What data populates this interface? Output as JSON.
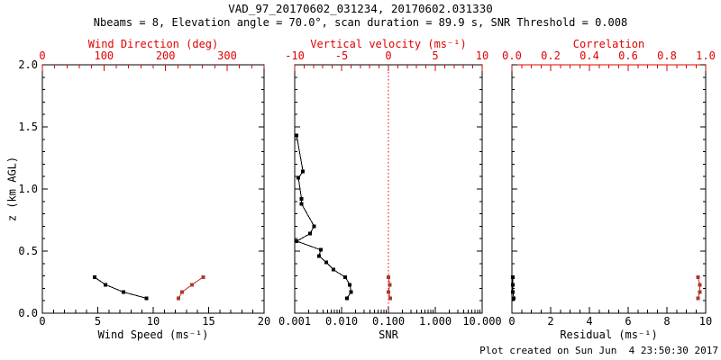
{
  "title": "VAD_97_20170602_031234, 20170602.031330",
  "subtitle": "Nbeams = 8, Elevation angle = 70.0°, scan duration = 89.9 s, SNR Threshold = 0.008",
  "footer": "Plot created on Sun Jun  4 23:50:30 2017",
  "colors": {
    "axis_red": "#e00000",
    "data_red": "#b1372a",
    "data_black": "#000000",
    "frame": "#000000",
    "background": "#ffffff"
  },
  "chart_data": [
    {
      "id": "wind",
      "type": "line",
      "xaxis_bottom": {
        "label": "Wind Speed (ms⁻¹)",
        "scale": "linear",
        "range": [
          0,
          20
        ],
        "tick_values": [
          0,
          5,
          10,
          15,
          20
        ],
        "ticks": [
          "0",
          "5",
          "10",
          "15",
          "20"
        ],
        "minor_step": 1,
        "red_line": false
      },
      "xaxis_top": {
        "label": "Wind Direction (deg)",
        "scale": "linear",
        "range": [
          0,
          360
        ],
        "tick_values": [
          0,
          100,
          200,
          300
        ],
        "ticks": [
          "0",
          "100",
          "200",
          "300"
        ],
        "minor_step": 20,
        "red_line": false
      },
      "yaxis": {
        "label": "z (km AGL)",
        "range": [
          0,
          2
        ],
        "tick_values": [
          0,
          0.5,
          1,
          1.5,
          2
        ],
        "ticks": [
          "0.0",
          "0.5",
          "1.0",
          "1.5",
          "2.0"
        ],
        "minor_step": 0.1
      },
      "series": [
        {
          "name": "wind_speed",
          "axis": "bottom",
          "color": "black",
          "marker": "square",
          "x": [
            4.7,
            5.7,
            7.3,
            9.4
          ],
          "z": [
            0.29,
            0.23,
            0.17,
            0.12
          ]
        },
        {
          "name": "wind_direction",
          "axis": "top",
          "color": "red",
          "marker": "square",
          "x": [
            261,
            243,
            227,
            221
          ],
          "z": [
            0.29,
            0.23,
            0.17,
            0.12
          ]
        }
      ]
    },
    {
      "id": "snr",
      "type": "line",
      "xaxis_bottom": {
        "label": "SNR",
        "scale": "log",
        "range": [
          0.001,
          10
        ],
        "tick_values": [
          0.001,
          0.01,
          0.1,
          1,
          10
        ],
        "ticks": [
          "0.001",
          "0.010",
          "0.100",
          "1.000",
          "10.000"
        ],
        "red_line": false
      },
      "xaxis_top": {
        "label": "Vertical velocity (ms⁻¹)",
        "scale": "linear",
        "range": [
          -10,
          10
        ],
        "tick_values": [
          -10,
          -5,
          0,
          5,
          10
        ],
        "ticks": [
          "-10",
          "-5",
          "0",
          "5",
          "10"
        ],
        "minor_step": 1,
        "red_line": false
      },
      "refline": {
        "axis": "top",
        "value": 0,
        "color": "red",
        "style": "dotted"
      },
      "series": [
        {
          "name": "snr_profile",
          "axis": "bottom",
          "color": "black",
          "marker": "square",
          "x": [
            0.0011,
            0.0015,
            0.0012,
            0.0014,
            0.0014,
            0.0026,
            0.0021,
            0.0011,
            0.0036,
            0.0033,
            0.0047,
            0.0067,
            0.012,
            0.015,
            0.016,
            0.013
          ],
          "z": [
            1.43,
            1.14,
            1.09,
            0.92,
            0.88,
            0.7,
            0.64,
            0.58,
            0.51,
            0.46,
            0.41,
            0.35,
            0.29,
            0.23,
            0.17,
            0.12
          ]
        },
        {
          "name": "vertical_velocity",
          "axis": "top",
          "color": "red",
          "marker": "square",
          "x": [
            0.0,
            0.15,
            0.0,
            0.2
          ],
          "z": [
            0.29,
            0.23,
            0.17,
            0.12
          ]
        }
      ]
    },
    {
      "id": "residual",
      "type": "line",
      "xaxis_bottom": {
        "label": "Residual (ms⁻¹)",
        "scale": "linear",
        "range": [
          0,
          10
        ],
        "tick_values": [
          0,
          2,
          4,
          6,
          8,
          10
        ],
        "ticks": [
          "0",
          "2",
          "4",
          "6",
          "8",
          "10"
        ],
        "minor_step": 0.5,
        "red_line": false
      },
      "xaxis_top": {
        "label": "Correlation",
        "scale": "linear",
        "range": [
          0,
          1
        ],
        "tick_values": [
          0,
          0.2,
          0.4,
          0.6,
          0.8,
          1
        ],
        "ticks": [
          "0.0",
          "0.2",
          "0.4",
          "0.6",
          "0.8",
          "1.0"
        ],
        "minor_step": 0.05,
        "red_line": true
      },
      "series": [
        {
          "name": "residual_profile",
          "axis": "bottom",
          "color": "black",
          "marker": "square",
          "x": [
            0.05,
            0.05,
            0.05,
            0.1
          ],
          "z": [
            0.29,
            0.23,
            0.17,
            0.12
          ]
        },
        {
          "name": "correlation",
          "axis": "top",
          "color": "red",
          "marker": "square",
          "x": [
            0.96,
            0.97,
            0.97,
            0.96
          ],
          "z": [
            0.29,
            0.23,
            0.17,
            0.12
          ]
        }
      ]
    }
  ]
}
